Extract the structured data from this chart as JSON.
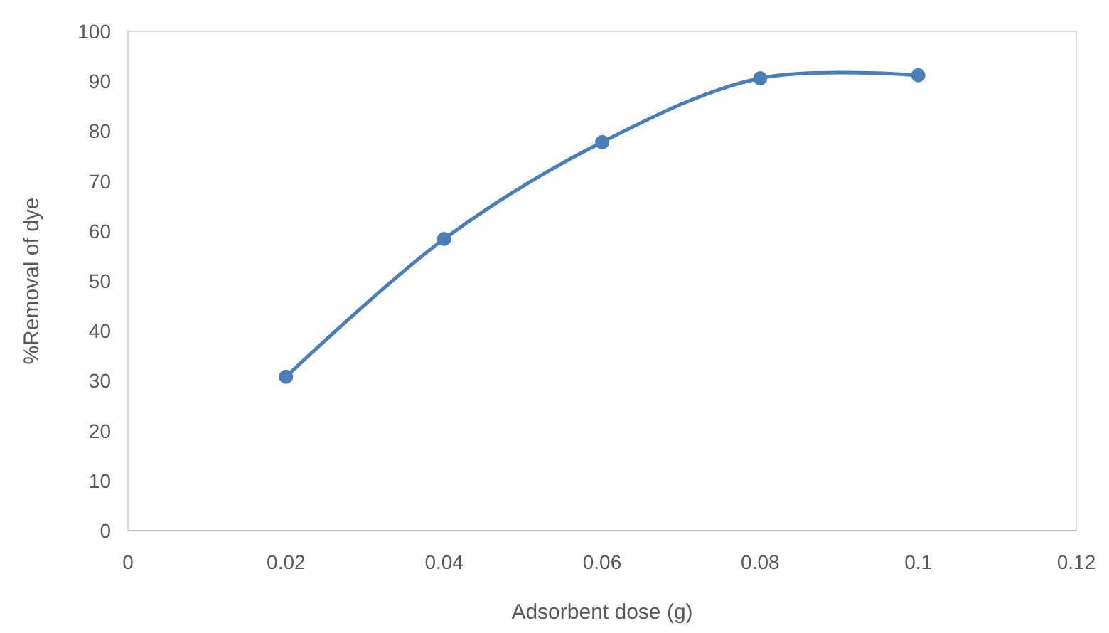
{
  "chart_data": {
    "type": "line",
    "xlabel": "Adsorbent dose (g)",
    "ylabel": "%Removal of dye",
    "x": [
      0.02,
      0.04,
      0.06,
      0.08,
      0.1
    ],
    "series": [
      {
        "color": "#4a7ebb",
        "values": [
          30.8,
          58.4,
          77.8,
          90.6,
          91.2
        ]
      }
    ],
    "xlim": [
      0,
      0.12
    ],
    "xticks": [
      0,
      0.02,
      0.04,
      0.06,
      0.08,
      0.1,
      0.12
    ],
    "ylim": [
      0,
      100
    ],
    "yticks": [
      0,
      10,
      20,
      30,
      40,
      50,
      60,
      70,
      80,
      90,
      100
    ],
    "grid": false,
    "marker": "circle",
    "line_style": "solid"
  }
}
